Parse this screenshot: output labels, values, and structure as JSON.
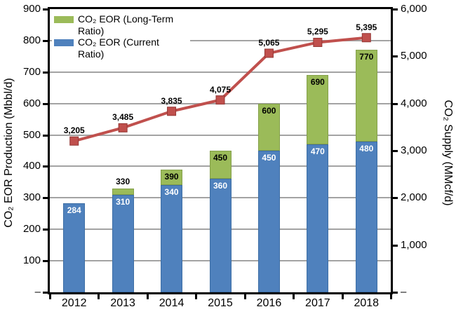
{
  "chart_data": {
    "type": "bar",
    "subtype": "stacked-bars-with-line-overlay",
    "categories": [
      "2012",
      "2013",
      "2014",
      "2015",
      "2016",
      "2017",
      "2018"
    ],
    "series": [
      {
        "name": "CO₂ EOR (Current Ratio)",
        "type": "bar",
        "axis": "left",
        "color": "#4f81bd",
        "border_color": "#3d6ea5",
        "values": [
          284,
          310,
          340,
          360,
          450,
          470,
          480
        ],
        "labels": [
          "284",
          "310",
          "340",
          "360",
          "450",
          "470",
          "480"
        ],
        "label_color": "#ffffff"
      },
      {
        "name": "CO₂ EOR (Long-Term Ratio)",
        "type": "bar-stacked-on-previous",
        "axis": "left",
        "color": "#9bbb59",
        "border_color": "#84a04a",
        "totals": [
          284,
          330,
          390,
          450,
          600,
          690,
          770
        ],
        "labels": [
          "",
          "330",
          "390",
          "450",
          "600",
          "690",
          "770"
        ],
        "label_color": "#000000"
      },
      {
        "name": "CO₂ Supply",
        "type": "line",
        "axis": "right",
        "color": "#c0504d",
        "marker": "square",
        "marker_border_color": "#943634",
        "values": [
          3205,
          3485,
          3835,
          4075,
          5065,
          5295,
          5395
        ],
        "labels": [
          "3,205",
          "3,485",
          "3,835",
          "4,075",
          "5,065",
          "5,295",
          "5,395"
        ]
      }
    ],
    "left_axis": {
      "title": "CO₂ EOR Production (Mbbl/d)",
      "min": 0,
      "max": 900,
      "tick_step": 100,
      "tick_labels": [
        "900",
        "800",
        "700",
        "600",
        "500",
        "400",
        "300",
        "200",
        "100",
        "–"
      ]
    },
    "right_axis": {
      "title": "CO₂ Supply (MMcf/d)",
      "min": 0,
      "max": 6000,
      "tick_step": 1000,
      "tick_labels": [
        "6,000",
        "5,000",
        "4,000",
        "3,000",
        "2,000",
        "1,000",
        "–"
      ]
    },
    "legend": [
      {
        "label": "CO₂ EOR (Long-Term Ratio)",
        "color": "#9bbb59"
      },
      {
        "label": "CO₂ EOR (Current Ratio)",
        "color": "#4f81bd"
      }
    ],
    "legend_position": "top-left-inside",
    "grid": "horizontal-major-left-axis",
    "gridline_color": "#a3a3a3",
    "plot_border_color": "#000000"
  }
}
